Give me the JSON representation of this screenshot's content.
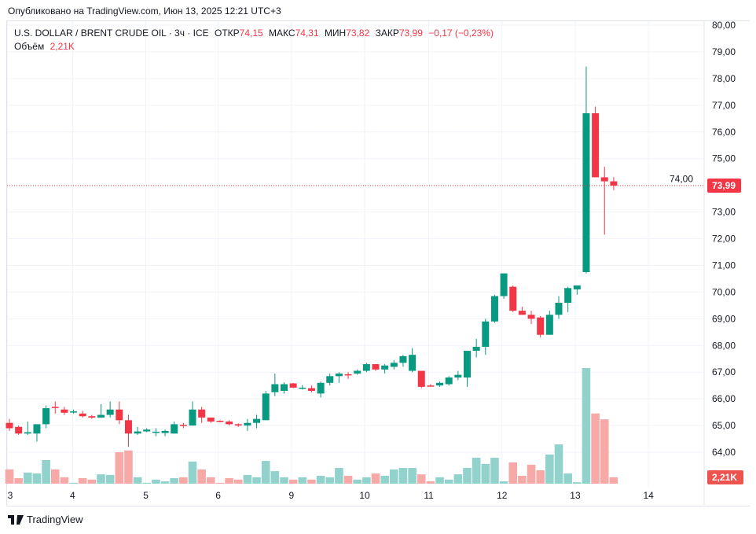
{
  "published": "Опубликовано на TradingView.com, Июн 13, 2025 12:21 UTC+3",
  "legend": {
    "symbol": "U.S. DOLLAR / BRENT CRUDE OIL · 3ч · ICE",
    "open_label": "ОТКР",
    "open": "74,15",
    "high_label": "МАКС",
    "high": "74,31",
    "low_label": "МИН",
    "low": "73,82",
    "close_label": "ЗАКР",
    "close": "73,99",
    "change": "−0,17 (−0,23%)",
    "volume_label": "Объём",
    "volume": "2,21K"
  },
  "logo": "TradingView",
  "colors": {
    "up": "#089981",
    "down": "#f23645",
    "up_vol": "#92d2cc",
    "down_vol": "#f7a9a7"
  },
  "chart_data": {
    "type": "candlestick",
    "interval": "3h",
    "ylim": [
      63.3,
      80
    ],
    "y_ticks": [
      "64,00",
      "65,00",
      "66,00",
      "67,00",
      "68,00",
      "69,00",
      "70,00",
      "71,00",
      "72,00",
      "73,00",
      "74,00",
      "75,00",
      "76,00",
      "77,00",
      "78,00",
      "79,00",
      "80,00"
    ],
    "x_ticks": [
      {
        "label": "3",
        "index": -0.2
      },
      {
        "label": "4",
        "index": 6.9
      },
      {
        "label": "5",
        "index": 14.9
      },
      {
        "label": "6",
        "index": 22.8
      },
      {
        "label": "9",
        "index": 30.8
      },
      {
        "label": "10",
        "index": 38.8
      },
      {
        "label": "11",
        "index": 45.8
      },
      {
        "label": "12",
        "index": 53.8
      },
      {
        "label": "13",
        "index": 61.8
      },
      {
        "label": "14",
        "index": 69.8
      }
    ],
    "last_price_label": "73,99",
    "last_volume_label": "2,21K",
    "candles": [
      [
        65.1,
        64.9,
        65.25,
        64.8
      ],
      [
        64.95,
        64.7,
        65.0,
        64.65
      ],
      [
        64.7,
        64.75,
        65.15,
        64.65
      ],
      [
        64.7,
        65.05,
        65.05,
        64.4
      ],
      [
        65.05,
        65.65,
        65.75,
        64.9
      ],
      [
        65.7,
        65.68,
        65.9,
        65.45
      ],
      [
        65.6,
        65.48,
        65.7,
        65.4
      ],
      [
        65.5,
        65.53,
        65.6,
        65.45
      ],
      [
        65.45,
        65.35,
        65.55,
        65.3
      ],
      [
        65.35,
        65.3,
        65.4,
        65.25
      ],
      [
        65.3,
        65.4,
        65.8,
        65.3
      ],
      [
        65.4,
        65.6,
        65.9,
        65.3
      ],
      [
        65.6,
        65.2,
        65.9,
        65.05
      ],
      [
        65.2,
        64.7,
        65.4,
        64.2
      ],
      [
        64.7,
        64.78,
        64.95,
        64.65
      ],
      [
        64.78,
        64.85,
        64.9,
        64.75
      ],
      [
        64.75,
        64.77,
        64.9,
        64.6
      ],
      [
        64.72,
        64.8,
        64.85,
        64.6
      ],
      [
        64.7,
        65.05,
        65.15,
        64.7
      ],
      [
        65.03,
        65.02,
        65.1,
        64.9
      ],
      [
        65.0,
        65.6,
        65.9,
        65.0
      ],
      [
        65.6,
        65.3,
        65.7,
        65.1
      ],
      [
        65.3,
        65.15,
        65.3,
        65.1
      ],
      [
        65.18,
        65.16,
        65.2,
        65.12
      ],
      [
        65.15,
        65.05,
        65.2,
        65.0
      ],
      [
        65.05,
        65.0,
        65.08,
        64.95
      ],
      [
        65.0,
        65.1,
        65.25,
        64.8
      ],
      [
        65.1,
        65.25,
        65.4,
        64.9
      ],
      [
        65.2,
        66.2,
        66.3,
        65.2
      ],
      [
        66.25,
        66.55,
        66.95,
        66.1
      ],
      [
        66.3,
        66.55,
        66.62,
        66.2
      ],
      [
        66.58,
        66.42,
        66.6,
        66.4
      ],
      [
        66.4,
        66.42,
        66.52,
        66.35
      ],
      [
        66.4,
        66.3,
        66.5,
        66.25
      ],
      [
        66.2,
        66.6,
        66.65,
        66.05
      ],
      [
        66.6,
        66.85,
        66.95,
        66.5
      ],
      [
        66.85,
        66.95,
        67.0,
        66.6
      ],
      [
        66.92,
        66.9,
        67.0,
        66.75
      ],
      [
        66.95,
        67.05,
        67.1,
        66.9
      ],
      [
        67.05,
        67.3,
        67.35,
        67.0
      ],
      [
        67.3,
        67.1,
        67.3,
        67.05
      ],
      [
        67.1,
        67.25,
        67.3,
        66.95
      ],
      [
        67.2,
        67.35,
        67.45,
        67.1
      ],
      [
        67.35,
        67.6,
        67.65,
        67.2
      ],
      [
        67.05,
        67.65,
        67.9,
        67.0
      ],
      [
        67.05,
        66.45,
        67.05,
        66.4
      ],
      [
        66.5,
        66.48,
        66.55,
        66.45
      ],
      [
        66.5,
        66.6,
        66.65,
        66.45
      ],
      [
        66.55,
        66.8,
        66.85,
        66.5
      ],
      [
        66.8,
        66.9,
        67.05,
        66.7
      ],
      [
        66.8,
        67.8,
        67.8,
        66.45
      ],
      [
        67.8,
        67.95,
        68.25,
        67.55
      ],
      [
        67.95,
        68.9,
        69.0,
        67.65
      ],
      [
        68.9,
        69.85,
        69.9,
        68.85
      ],
      [
        69.85,
        70.7,
        70.7,
        69.75
      ],
      [
        70.2,
        69.3,
        70.25,
        69.25
      ],
      [
        69.3,
        69.15,
        69.45,
        69.15
      ],
      [
        69.15,
        69.0,
        69.3,
        68.8
      ],
      [
        69.05,
        68.4,
        69.1,
        68.3
      ],
      [
        68.4,
        69.15,
        69.3,
        68.4
      ],
      [
        69.15,
        69.6,
        69.85,
        69.0
      ],
      [
        69.6,
        70.15,
        70.2,
        69.25
      ],
      [
        70.1,
        70.25,
        70.25,
        69.9
      ],
      [
        70.75,
        76.7,
        78.45,
        70.7
      ],
      [
        76.7,
        74.3,
        76.95,
        74.3
      ],
      [
        74.3,
        74.15,
        74.7,
        72.15
      ],
      [
        74.15,
        73.99,
        74.31,
        73.82
      ]
    ],
    "volumes_k": [
      4.9,
      1.9,
      3.8,
      3.5,
      8.1,
      4.9,
      2.2,
      0.3,
      1.9,
      1.4,
      3.2,
      3.0,
      10.8,
      11.4,
      2.2,
      0.3,
      1.4,
      0.8,
      1.9,
      2.2,
      7.6,
      4.9,
      2.2,
      0.3,
      1.9,
      1.4,
      3.0,
      2.2,
      7.8,
      4.3,
      2.2,
      1.4,
      2.2,
      1.4,
      2.7,
      2.2,
      5.4,
      2.7,
      1.4,
      2.2,
      3.5,
      2.7,
      4.9,
      5.4,
      5.4,
      3.2,
      0.8,
      2.2,
      1.4,
      3.2,
      5.4,
      8.9,
      6.8,
      8.9,
      0.8,
      7.3,
      2.7,
      6.5,
      4.6,
      10.0,
      13.5,
      3.5,
      0.5,
      39.7,
      24.1,
      22.1,
      2.2
    ]
  }
}
